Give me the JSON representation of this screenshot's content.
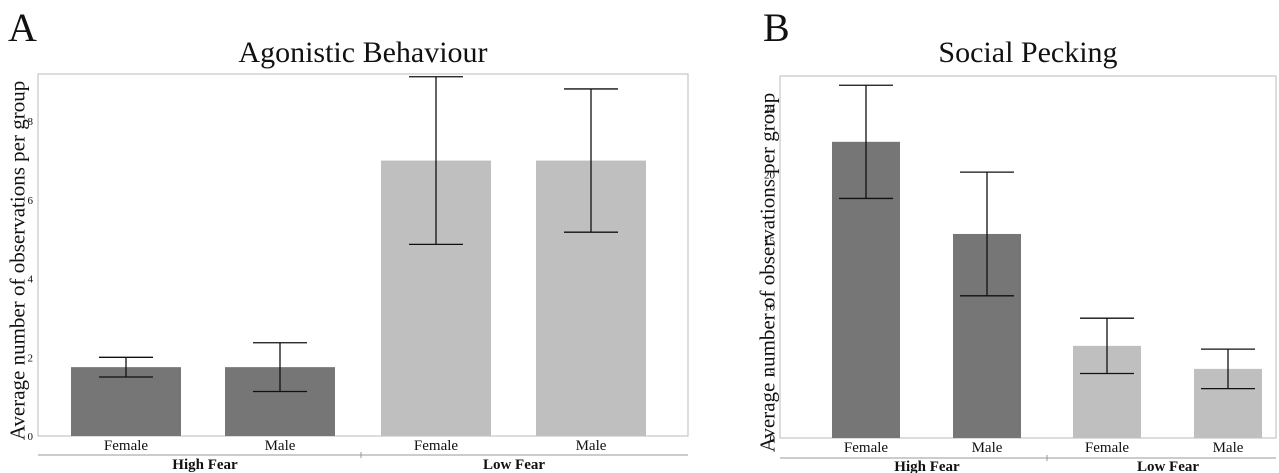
{
  "colors": {
    "high_fear": "#767676",
    "low_fear": "#bfbfbf",
    "error_bar": "#111111",
    "frame": "#bbbbbb"
  },
  "chart_data": [
    {
      "panel": "A",
      "type": "bar",
      "title": "Agonistic Behaviour",
      "xlabel": "",
      "ylabel": "Average number of observations per group",
      "ylim": [
        0,
        9.2
      ],
      "yticks": [
        0,
        2,
        4,
        6,
        8
      ],
      "grid": false,
      "categories": [
        "Female",
        "Male",
        "Female",
        "Male"
      ],
      "groups": [
        {
          "name": "High Fear",
          "categories": [
            0,
            1
          ],
          "color": "#767676"
        },
        {
          "name": "Low Fear",
          "categories": [
            2,
            3
          ],
          "color": "#bfbfbf"
        }
      ],
      "values": [
        1.75,
        1.75,
        7.0,
        7.0
      ],
      "error_low": [
        1.5,
        1.13,
        4.87,
        5.18
      ],
      "error_high": [
        2.0,
        2.37,
        9.13,
        8.82
      ]
    },
    {
      "panel": "B",
      "type": "bar",
      "title": "Social Pecking",
      "xlabel": "",
      "ylabel": "Average number of observations per group",
      "ylim": [
        0,
        27.5
      ],
      "yticks": [
        0,
        5,
        10,
        15,
        20,
        25
      ],
      "grid": false,
      "categories": [
        "Female",
        "Male",
        "Female",
        "Male"
      ],
      "groups": [
        {
          "name": "High Fear",
          "categories": [
            0,
            1
          ],
          "color": "#767676"
        },
        {
          "name": "Low Fear",
          "categories": [
            2,
            3
          ],
          "color": "#bfbfbf"
        }
      ],
      "values": [
        22.5,
        15.5,
        7.0,
        5.25
      ],
      "error_low": [
        18.2,
        10.8,
        4.9,
        3.75
      ],
      "error_high": [
        26.8,
        20.2,
        9.1,
        6.75
      ]
    }
  ]
}
